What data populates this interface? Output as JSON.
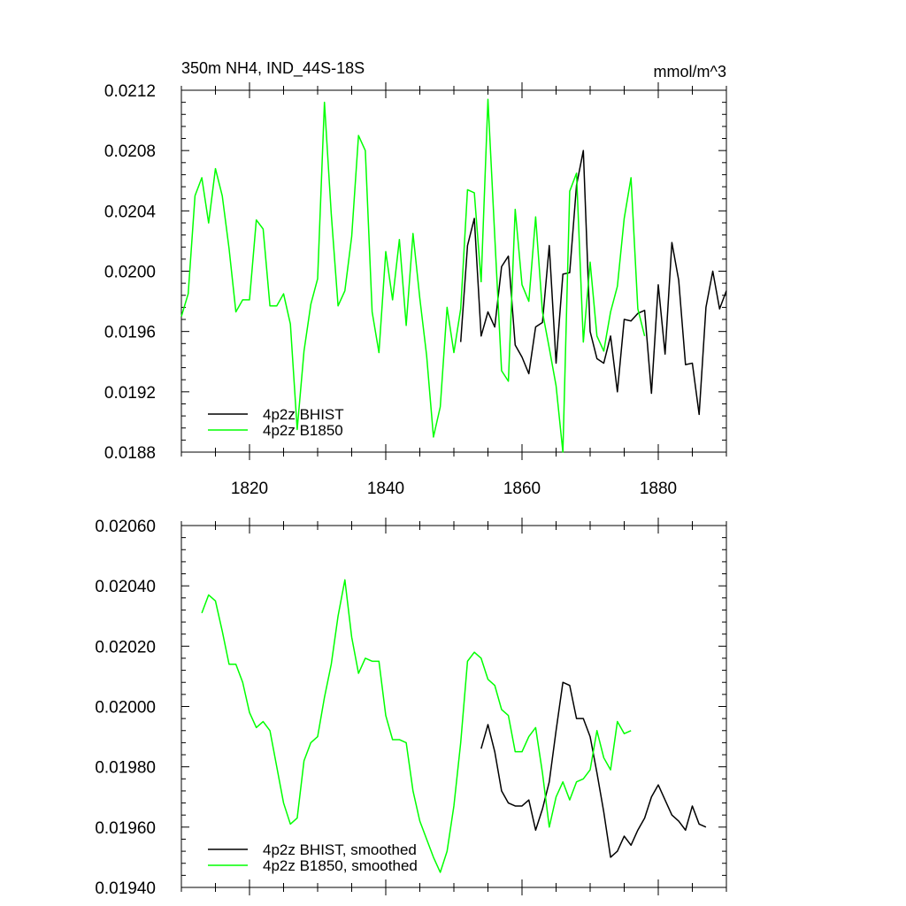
{
  "chart_data": [
    {
      "type": "line",
      "title": "350m NH4, IND_44S-18S",
      "units": "mmol/m^3",
      "xlim": [
        1810,
        1890
      ],
      "ylim": [
        0.0188,
        0.0212
      ],
      "x_ticks": [
        1820,
        1840,
        1860,
        1880
      ],
      "y_ticks": [
        0.0188,
        0.0192,
        0.0196,
        0.02,
        0.0204,
        0.0208,
        0.0212
      ],
      "y_tick_labels": [
        "0.0188",
        "0.0192",
        "0.0196",
        "0.0200",
        "0.0204",
        "0.0208",
        "0.0212"
      ],
      "legend_position": "bottom-left",
      "series": [
        {
          "name": "4p2z BHIST",
          "color": "#000000",
          "x_start": 1851,
          "values": [
            0.01953,
            0.02017,
            0.02035,
            0.01957,
            0.01973,
            0.01963,
            0.02003,
            0.0201,
            0.01951,
            0.01943,
            0.01932,
            0.01963,
            0.01966,
            0.02017,
            0.01939,
            0.01998,
            0.01999,
            0.02057,
            0.0208,
            0.0196,
            0.01942,
            0.01939,
            0.01957,
            0.0192,
            0.01968,
            0.01967,
            0.01972,
            0.01974,
            0.01919,
            0.01991,
            0.01945,
            0.02019,
            0.01994,
            0.01938,
            0.01939,
            0.01905,
            0.01976,
            0.02,
            0.01975,
            0.01987
          ]
        },
        {
          "name": "4p2z B1850",
          "color": "#00ff00",
          "x_start": 1810,
          "values": [
            0.0197,
            0.01985,
            0.0205,
            0.02062,
            0.02032,
            0.02068,
            0.0205,
            0.02015,
            0.01973,
            0.01981,
            0.01981,
            0.02034,
            0.02028,
            0.01977,
            0.01977,
            0.01985,
            0.01965,
            0.01895,
            0.01947,
            0.01978,
            0.01995,
            0.02112,
            0.02038,
            0.01977,
            0.01987,
            0.02023,
            0.0209,
            0.0208,
            0.01973,
            0.01946,
            0.02013,
            0.01981,
            0.02021,
            0.01964,
            0.02025,
            0.01982,
            0.01944,
            0.0189,
            0.0191,
            0.01976,
            0.01946,
            0.01975,
            0.02054,
            0.02052,
            0.01993,
            0.02114,
            0.02023,
            0.01934,
            0.01927,
            0.02041,
            0.01991,
            0.0198,
            0.02036,
            0.01973,
            0.01949,
            0.01924,
            0.0188,
            0.02053,
            0.02065,
            0.01953,
            0.02006,
            0.01957,
            0.01947,
            0.01973,
            0.0199,
            0.02035,
            0.02062,
            0.01975,
            0.01957
          ]
        }
      ]
    },
    {
      "type": "line",
      "title": "",
      "xlim": [
        1810,
        1890
      ],
      "ylim": [
        0.0194,
        0.0206
      ],
      "x_ticks": [
        1820,
        1840,
        1860,
        1880
      ],
      "y_ticks": [
        0.0194,
        0.0196,
        0.0198,
        0.02,
        0.0202,
        0.0204,
        0.0206
      ],
      "y_tick_labels": [
        "0.01940",
        "0.01960",
        "0.01980",
        "0.02000",
        "0.02020",
        "0.02040",
        "0.02060"
      ],
      "legend_position": "bottom-left",
      "series": [
        {
          "name": "4p2z BHIST, smoothed",
          "color": "#000000",
          "x_start": 1854,
          "values": [
            0.01986,
            0.01994,
            0.01985,
            0.01972,
            0.01968,
            0.01967,
            0.01967,
            0.01969,
            0.01959,
            0.01966,
            0.01975,
            0.01992,
            0.02008,
            0.02007,
            0.01996,
            0.01996,
            0.0199,
            0.01978,
            0.01965,
            0.0195,
            0.01952,
            0.01957,
            0.01954,
            0.01959,
            0.01963,
            0.0197,
            0.01974,
            0.01969,
            0.01964,
            0.01962,
            0.01959,
            0.01967,
            0.01961,
            0.0196
          ]
        },
        {
          "name": "4p2z B1850, smoothed",
          "color": "#00ff00",
          "x_start": 1813,
          "values": [
            0.02031,
            0.02037,
            0.02035,
            0.02025,
            0.02014,
            0.02014,
            0.02008,
            0.01998,
            0.01993,
            0.01995,
            0.01992,
            0.0198,
            0.01968,
            0.01961,
            0.01963,
            0.01982,
            0.01988,
            0.0199,
            0.02003,
            0.02014,
            0.0203,
            0.02042,
            0.02023,
            0.02011,
            0.02016,
            0.02015,
            0.02015,
            0.01997,
            0.01989,
            0.01989,
            0.01988,
            0.01972,
            0.01962,
            0.01956,
            0.0195,
            0.01945,
            0.01952,
            0.01967,
            0.01988,
            0.02015,
            0.02018,
            0.02016,
            0.02009,
            0.02007,
            0.01999,
            0.01997,
            0.01985,
            0.01985,
            0.0199,
            0.01993,
            0.01978,
            0.0196,
            0.0197,
            0.01975,
            0.01969,
            0.01975,
            0.01976,
            0.01979,
            0.01992,
            0.01983,
            0.01979,
            0.01995,
            0.01991,
            0.01992
          ]
        }
      ]
    }
  ]
}
